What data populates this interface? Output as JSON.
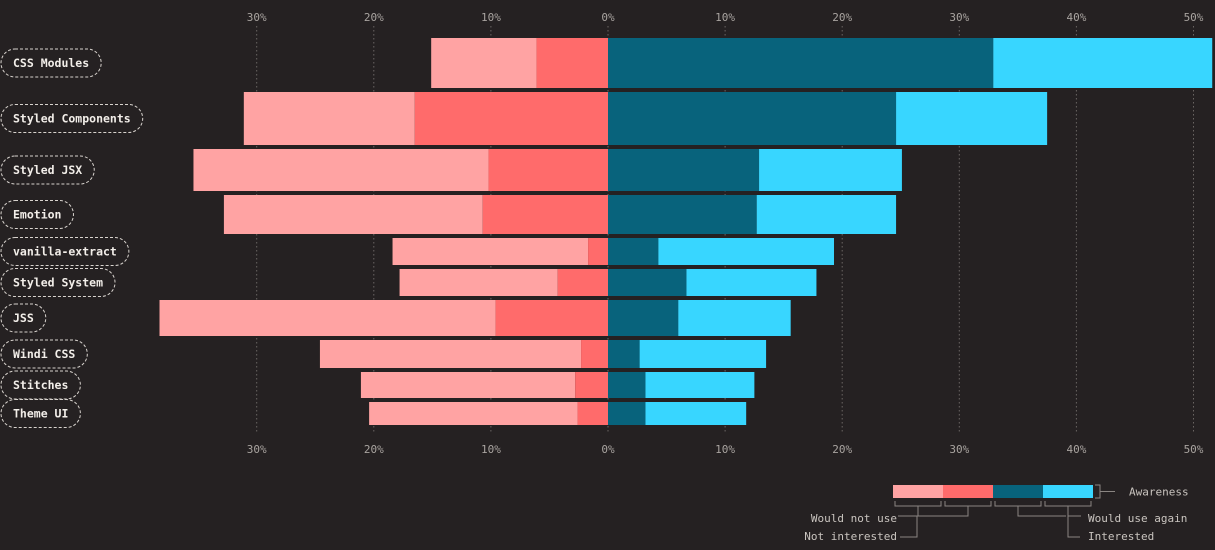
{
  "chart_data": {
    "type": "bar",
    "orientation": "horizontal-diverging",
    "x_ticks": [
      "30%",
      "20%",
      "10%",
      "0%",
      "10%",
      "20%",
      "30%",
      "40%",
      "50%"
    ],
    "x_tick_values": [
      -30,
      -20,
      -10,
      0,
      10,
      20,
      30,
      40,
      50
    ],
    "xlim": [
      -38,
      51
    ],
    "grid": true,
    "categories": [
      "CSS Modules",
      "Styled Components",
      "Styled JSX",
      "Emotion",
      "vanilla-extract",
      "Styled System",
      "JSS",
      "Windi CSS",
      "Stitches",
      "Theme UI"
    ],
    "series": [
      {
        "name": "Would not use",
        "color": "#ffa3a3",
        "side": "negative",
        "values": [
          9.0,
          14.6,
          25.2,
          22.1,
          16.7,
          13.5,
          28.7,
          22.3,
          18.3,
          17.8
        ]
      },
      {
        "name": "Not interested",
        "color": "#ff6b6b",
        "side": "negative",
        "values": [
          6.1,
          16.5,
          10.2,
          10.7,
          1.7,
          4.3,
          9.6,
          2.3,
          2.8,
          2.6
        ]
      },
      {
        "name": "Would use again",
        "color": "#08637c",
        "side": "positive",
        "values": [
          32.9,
          24.6,
          12.9,
          12.7,
          4.3,
          6.7,
          6.0,
          2.7,
          3.2,
          3.2
        ]
      },
      {
        "name": "Interested",
        "color": "#38d6ff",
        "side": "positive",
        "values": [
          18.7,
          12.9,
          12.2,
          11.9,
          15.0,
          11.1,
          9.6,
          10.8,
          9.3,
          8.6
        ]
      }
    ],
    "legend": {
      "position": "bottom-right",
      "awareness_label": "Awareness"
    }
  }
}
